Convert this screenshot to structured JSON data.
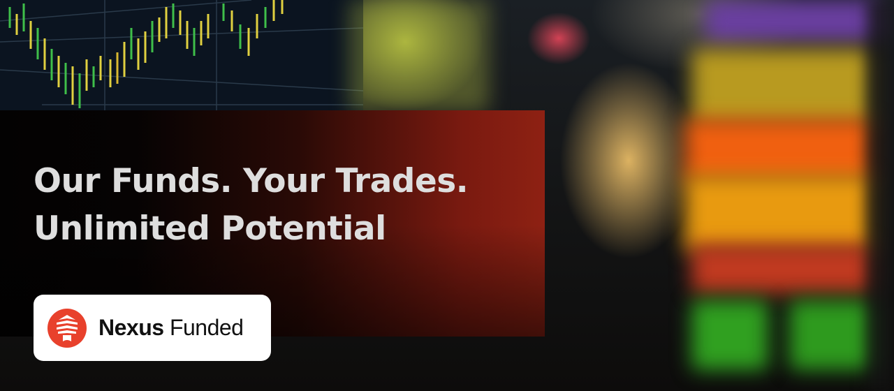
{
  "headline": {
    "line1": "Our Funds. Your Trades.",
    "line2": "Unlimited Potential"
  },
  "brand": {
    "name_bold": "Nexus",
    "name_regular": "Funded",
    "logo_icon": "nexus-funded-logo",
    "logo_color": "#e8412c"
  },
  "colors": {
    "panel_gradient_start": "#030202",
    "panel_gradient_end": "#8e2113",
    "headline_text": "#dedede",
    "card_background": "#ffffff"
  }
}
